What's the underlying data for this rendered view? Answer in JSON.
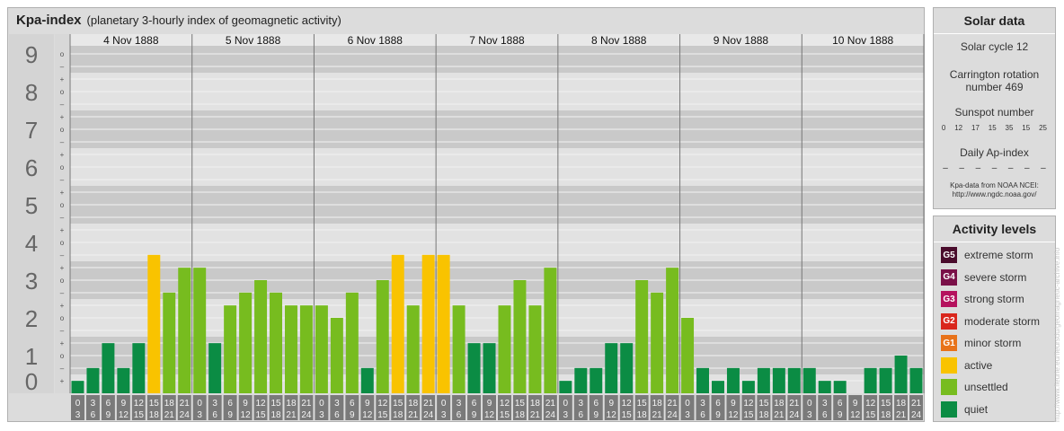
{
  "header": {
    "title": "Kpa-index",
    "subtitle": "(planetary 3-hourly index of geomagnetic activity)"
  },
  "chart_data": {
    "type": "bar",
    "y_ticks": [
      "0",
      "1",
      "2",
      "3",
      "4",
      "5",
      "6",
      "7",
      "8",
      "9"
    ],
    "minor_tick_labels": [
      "–",
      "o",
      "+"
    ],
    "ylim": [
      0,
      9.33
    ],
    "days": [
      "4 Nov 1888",
      "5 Nov 1888",
      "6 Nov 1888",
      "7 Nov 1888",
      "8 Nov 1888",
      "9 Nov 1888",
      "10 Nov 1888"
    ],
    "interval_start": [
      "0",
      "3",
      "6",
      "9",
      "12",
      "15",
      "18",
      "21"
    ],
    "interval_end": [
      "3",
      "6",
      "9",
      "12",
      "15",
      "18",
      "21",
      "24"
    ],
    "values": [
      0.33,
      0.67,
      1.33,
      0.67,
      1.33,
      3.67,
      2.67,
      3.33,
      3.33,
      1.33,
      2.33,
      2.67,
      3.0,
      2.67,
      2.33,
      2.33,
      2.33,
      2.0,
      2.67,
      0.67,
      3.0,
      3.67,
      2.33,
      3.67,
      3.67,
      2.33,
      1.33,
      1.33,
      2.33,
      3.0,
      2.33,
      3.33,
      0.33,
      0.67,
      0.67,
      1.33,
      1.33,
      3.0,
      2.67,
      3.33,
      2.0,
      0.67,
      0.33,
      0.67,
      0.33,
      0.67,
      0.67,
      0.67,
      0.67,
      0.33,
      0.33,
      0.0,
      0.67,
      0.67,
      1.0,
      0.67
    ],
    "colors": {
      "quiet": "#0b8c44",
      "unsettled": "#77bc1f",
      "active": "#f9c300"
    }
  },
  "solar": {
    "title": "Solar data",
    "cycle": "Solar cycle 12",
    "carrington_1": "Carrington rotation",
    "carrington_2": "number 469",
    "sunspot_title": "Sunspot number",
    "sunspots": [
      "0",
      "12",
      "17",
      "15",
      "35",
      "15",
      "25"
    ],
    "ap_title": "Daily Ap-index",
    "ap_values": [
      "–",
      "–",
      "–",
      "–",
      "–",
      "–",
      "–"
    ],
    "source_1": "Kpa-data from NOAA NCEI:",
    "source_2": "http://www.ngdc.noaa.gov/"
  },
  "activity": {
    "title": "Activity levels",
    "items": [
      {
        "badge": "G5",
        "label": "extreme storm",
        "color": "#4a0c2c"
      },
      {
        "badge": "G4",
        "label": "severe storm",
        "color": "#7a1048"
      },
      {
        "badge": "G3",
        "label": "strong storm",
        "color": "#b5125e"
      },
      {
        "badge": "G2",
        "label": "moderate storm",
        "color": "#d9261c"
      },
      {
        "badge": "G1",
        "label": "minor storm",
        "color": "#e8731a"
      },
      {
        "badge": "",
        "label": "active",
        "color": "#f9c300"
      },
      {
        "badge": "",
        "label": "unsettled",
        "color": "#77bc1f"
      },
      {
        "badge": "",
        "label": "quiet",
        "color": "#0b8c44"
      }
    ]
  },
  "watermark": "http://www.fleurie.eu/fleursdu/geomagnetic-archive.info"
}
